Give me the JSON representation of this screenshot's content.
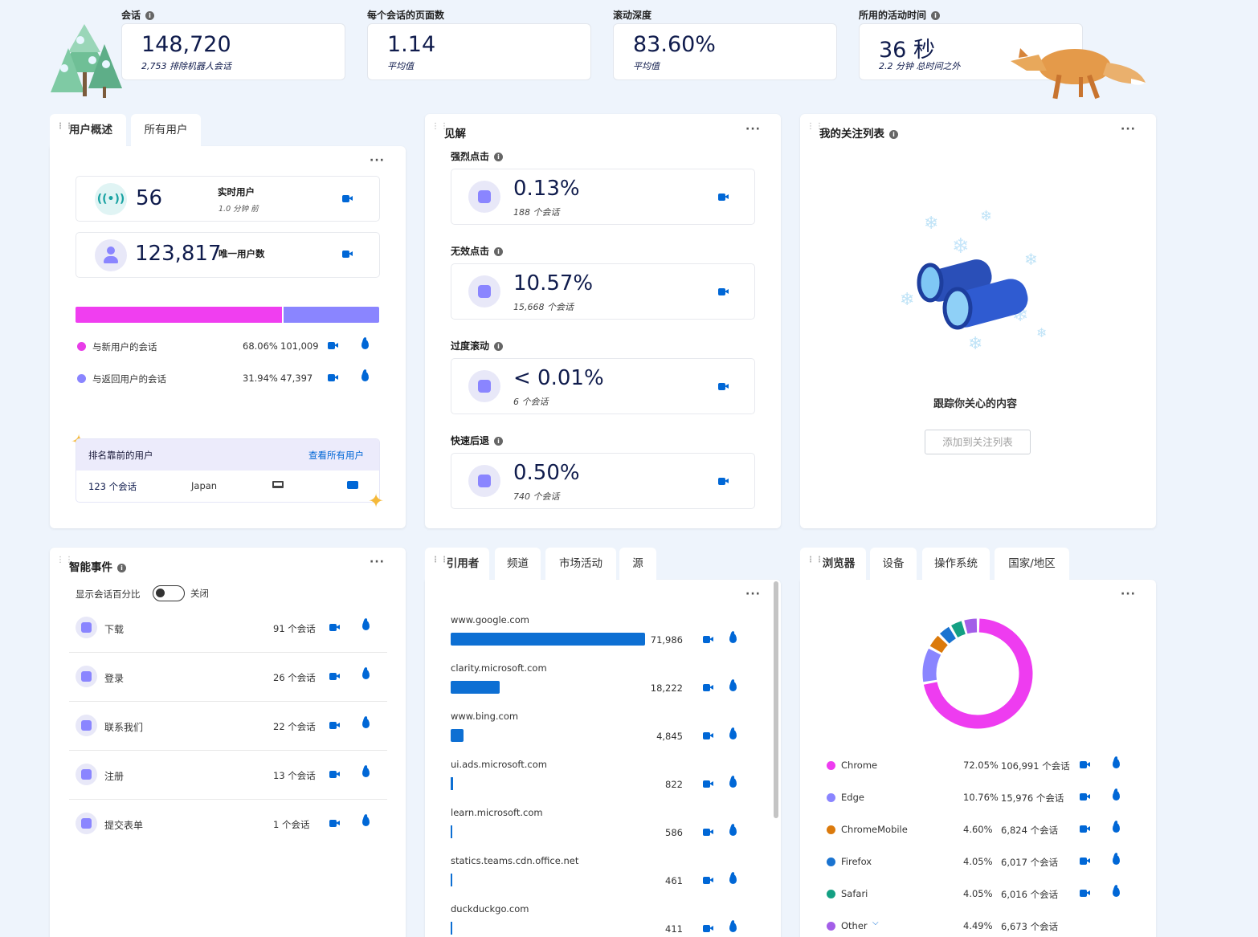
{
  "kpis": [
    {
      "label": "会话",
      "value": "148,720",
      "sub": "2,753 排除机器人会话",
      "info": true
    },
    {
      "label": "每个会话的页面数",
      "value": "1.14",
      "sub": "平均值",
      "info": false
    },
    {
      "label": "滚动深度",
      "value": "83.60%",
      "sub": "平均值",
      "info": false
    },
    {
      "label": "所用的活动时间",
      "value": "36 秒",
      "sub": "2.2 分钟 总时间之外",
      "info": true
    }
  ],
  "user_overview": {
    "tab_active": "用户概述",
    "tab_other": "所有用户",
    "live_value": "56",
    "live_label": "实时用户",
    "live_sub": "1.0 分钟 前",
    "unique_value": "123,817",
    "unique_label": "唯一用户数",
    "bar": {
      "new_fraction": 0.6806,
      "new_color": "#f03ef0",
      "returning_color": "#8a85ff"
    },
    "rows": [
      {
        "label": "与新用户的会话",
        "pct": "68.06%",
        "count": "101,009",
        "color": "#e83de8"
      },
      {
        "label": "与返回用户的会话",
        "pct": "31.94%",
        "count": "47,397",
        "color": "#8a85ff"
      }
    ],
    "top_users_title": "排名靠前的用户",
    "view_all": "查看所有用户",
    "top_user": {
      "sessions": "123 个会话",
      "country": "Japan"
    }
  },
  "insights": {
    "title": "见解",
    "items": [
      {
        "label": "强烈点击",
        "value": "0.13%",
        "sub": "188 个会话",
        "icon": "angry-face-icon"
      },
      {
        "label": "无效点击",
        "value": "10.57%",
        "sub": "15,668 个会话",
        "icon": "dead-click-icon"
      },
      {
        "label": "过度滚动",
        "value": "< 0.01%",
        "sub": "6 个会话",
        "icon": "scroll-icon"
      },
      {
        "label": "快速后退",
        "value": "0.50%",
        "sub": "740 个会话",
        "icon": "quick-back-icon"
      }
    ]
  },
  "watchlist": {
    "title": "我的关注列表",
    "empty_text": "跟踪你关心的内容",
    "button": "添加到关注列表"
  },
  "smart_events": {
    "title": "智能事件",
    "toggle_label": "显示会话百分比",
    "toggle_state": "关闭",
    "items": [
      {
        "label": "下载",
        "count": "91 个会话",
        "icon": "download-icon"
      },
      {
        "label": "登录",
        "count": "26 个会话",
        "icon": "login-icon"
      },
      {
        "label": "联系我们",
        "count": "22 个会话",
        "icon": "contact-icon"
      },
      {
        "label": "注册",
        "count": "13 个会话",
        "icon": "register-icon"
      },
      {
        "label": "提交表单",
        "count": "1 个会话",
        "icon": "form-icon"
      }
    ]
  },
  "referrers": {
    "tabs": [
      "引用者",
      "频道",
      "市场活动",
      "源"
    ],
    "items": [
      {
        "domain": "www.google.com",
        "count": "71,986",
        "value": 71986
      },
      {
        "domain": "clarity.microsoft.com",
        "count": "18,222",
        "value": 18222
      },
      {
        "domain": "www.bing.com",
        "count": "4,845",
        "value": 4845
      },
      {
        "domain": "ui.ads.microsoft.com",
        "count": "822",
        "value": 822
      },
      {
        "domain": "learn.microsoft.com",
        "count": "586",
        "value": 586
      },
      {
        "domain": "statics.teams.cdn.office.net",
        "count": "461",
        "value": 461
      },
      {
        "domain": "duckduckgo.com",
        "count": "411",
        "value": 411
      }
    ]
  },
  "browsers": {
    "tabs": [
      "浏览器",
      "设备",
      "操作系统",
      "国家/地区"
    ],
    "items": [
      {
        "name": "Chrome",
        "pct": "72.05%",
        "count": "106,991 个会话",
        "color": "#ee3cf0",
        "value": 72.05
      },
      {
        "name": "Edge",
        "pct": "10.76%",
        "count": "15,976 个会话",
        "color": "#8a85ff",
        "value": 10.76
      },
      {
        "name": "ChromeMobile",
        "pct": "4.60%",
        "count": "6,824 个会话",
        "color": "#db7a0c",
        "value": 4.6
      },
      {
        "name": "Firefox",
        "pct": "4.05%",
        "count": "6,017 个会话",
        "color": "#1a73d0",
        "value": 4.05
      },
      {
        "name": "Safari",
        "pct": "4.05%",
        "count": "6,016 个会话",
        "color": "#14a083",
        "value": 4.05
      },
      {
        "name": "Other",
        "pct": "4.49%",
        "count": "6,673 个会话",
        "color": "#a35ee8",
        "value": 4.49
      }
    ]
  }
}
